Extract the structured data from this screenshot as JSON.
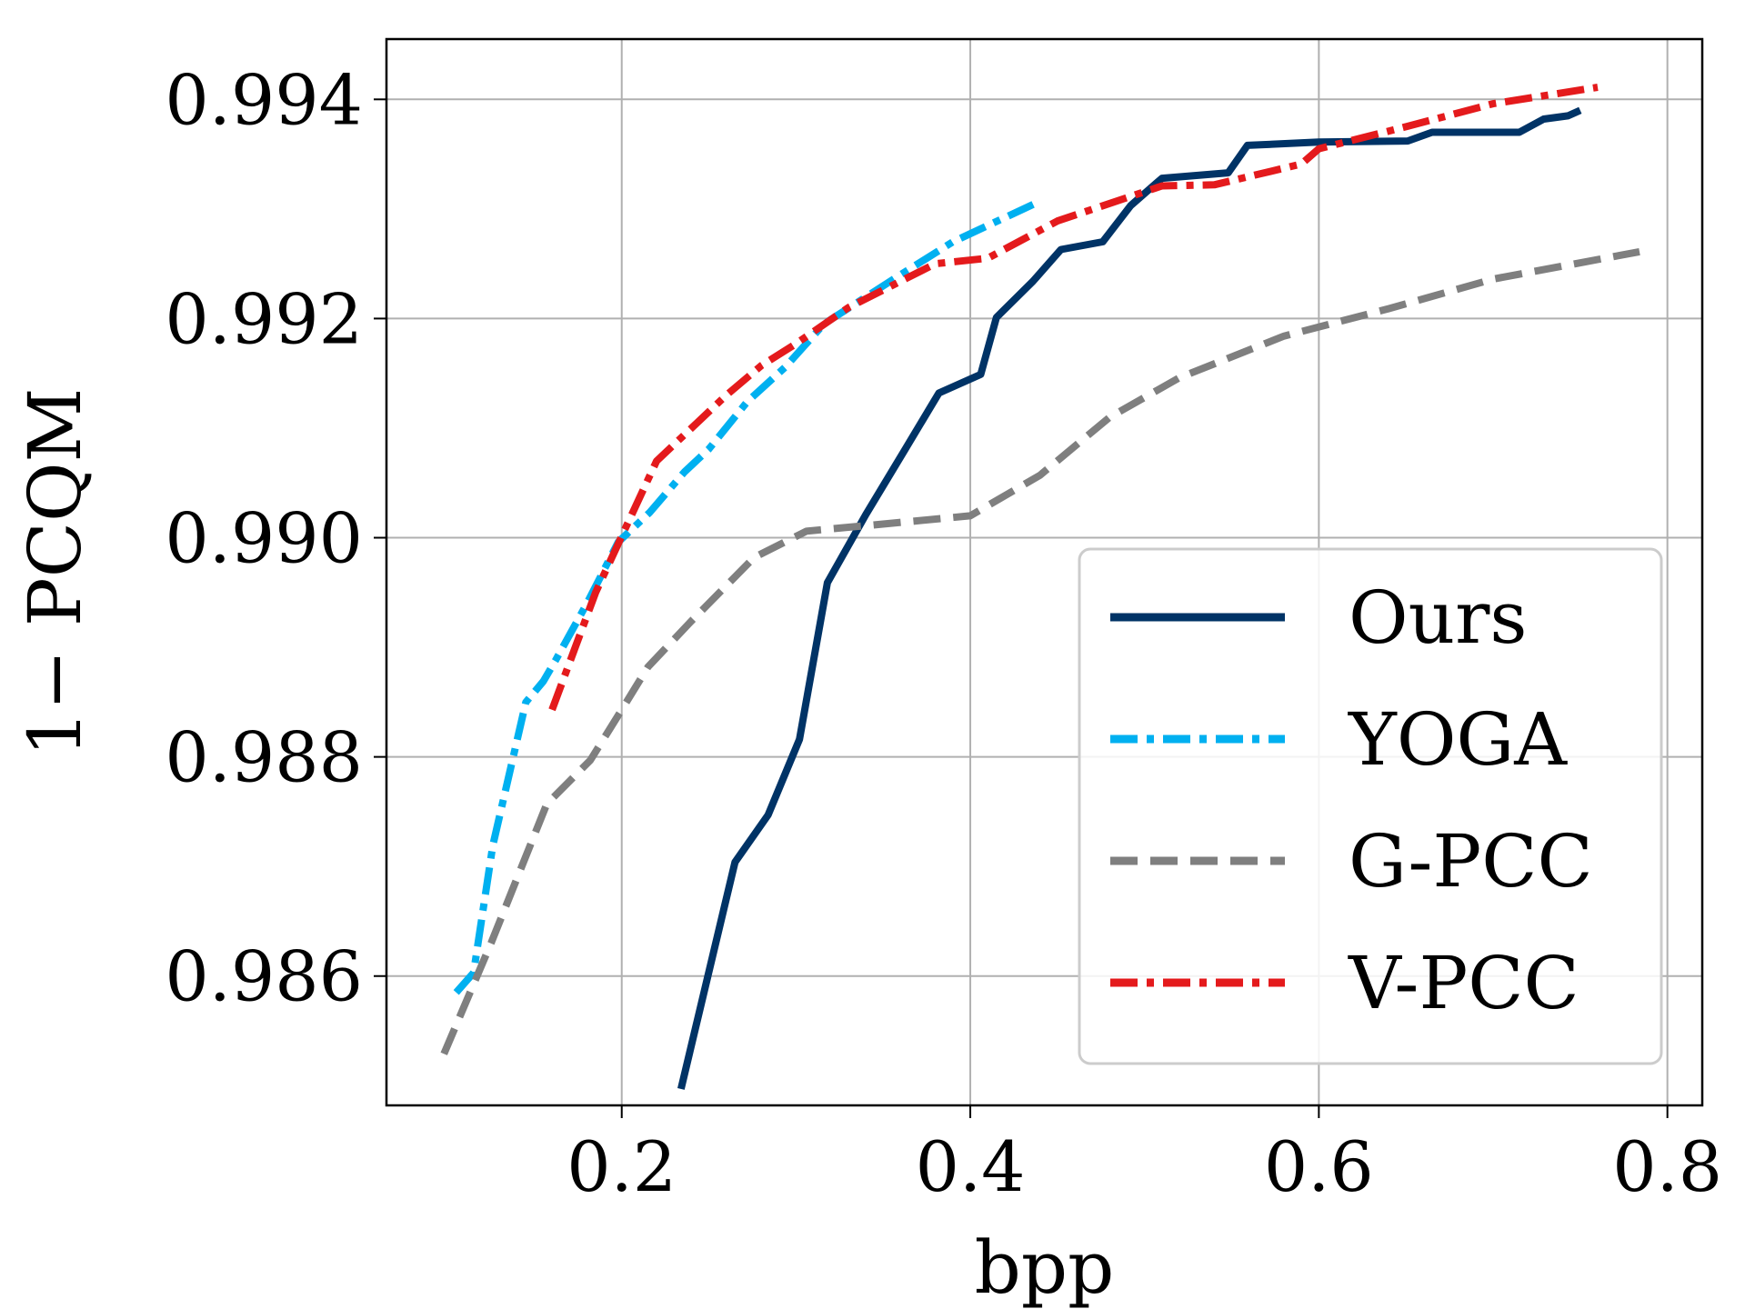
{
  "chart_data": {
    "type": "line",
    "xlabel": "bpp",
    "ylabel": "1− PCQM",
    "xlim": [
      0.065,
      0.82
    ],
    "ylim": [
      0.98482,
      0.99455
    ],
    "xticks": [
      0.2,
      0.4,
      0.6,
      0.8
    ],
    "xtick_labels": [
      "0.2",
      "0.4",
      "0.6",
      "0.8"
    ],
    "yticks": [
      0.986,
      0.988,
      0.99,
      0.992,
      0.994
    ],
    "ytick_labels": [
      "0.986",
      "0.988",
      "0.990",
      "0.992",
      "0.994"
    ],
    "grid": true,
    "legend_position": "lower-right",
    "series": [
      {
        "name": "Ours",
        "color": "#003366",
        "dash": "solid",
        "points": [
          [
            0.234,
            0.98497
          ],
          [
            0.265,
            0.98704
          ],
          [
            0.284,
            0.98747
          ],
          [
            0.302,
            0.98816
          ],
          [
            0.318,
            0.98959
          ],
          [
            0.34,
            0.99021
          ],
          [
            0.362,
            0.99079
          ],
          [
            0.382,
            0.99132
          ],
          [
            0.406,
            0.99149
          ],
          [
            0.415,
            0.99201
          ],
          [
            0.436,
            0.99234
          ],
          [
            0.452,
            0.99263
          ],
          [
            0.476,
            0.9927
          ],
          [
            0.492,
            0.99303
          ],
          [
            0.51,
            0.99328
          ],
          [
            0.548,
            0.99333
          ],
          [
            0.559,
            0.99358
          ],
          [
            0.6,
            0.99361
          ],
          [
            0.651,
            0.99362
          ],
          [
            0.665,
            0.9937
          ],
          [
            0.715,
            0.9937
          ],
          [
            0.729,
            0.99382
          ],
          [
            0.743,
            0.99385
          ],
          [
            0.75,
            0.9939
          ]
        ]
      },
      {
        "name": "YOGA",
        "color": "#00b0f0",
        "dash": "dashdot",
        "points": [
          [
            0.105,
            0.98585
          ],
          [
            0.115,
            0.98603
          ],
          [
            0.126,
            0.98719
          ],
          [
            0.145,
            0.9885
          ],
          [
            0.155,
            0.98869
          ],
          [
            0.162,
            0.98888
          ],
          [
            0.18,
            0.9894
          ],
          [
            0.198,
            0.98996
          ],
          [
            0.216,
            0.99023
          ],
          [
            0.236,
            0.9906
          ],
          [
            0.25,
            0.99081
          ],
          [
            0.272,
            0.99124
          ],
          [
            0.294,
            0.99156
          ],
          [
            0.316,
            0.99195
          ],
          [
            0.358,
            0.99238
          ],
          [
            0.39,
            0.9927
          ],
          [
            0.44,
            0.99307
          ]
        ]
      },
      {
        "name": "G-PCC",
        "color": "#7f7f7f",
        "dash": "dashed",
        "points": [
          [
            0.098,
            0.98529
          ],
          [
            0.125,
            0.9863
          ],
          [
            0.157,
            0.98757
          ],
          [
            0.182,
            0.98797
          ],
          [
            0.2,
            0.98843
          ],
          [
            0.215,
            0.98882
          ],
          [
            0.24,
            0.98924
          ],
          [
            0.276,
            0.98982
          ],
          [
            0.306,
            0.99006
          ],
          [
            0.34,
            0.99011
          ],
          [
            0.4,
            0.9902
          ],
          [
            0.44,
            0.99057
          ],
          [
            0.48,
            0.9911
          ],
          [
            0.52,
            0.99146
          ],
          [
            0.58,
            0.99184
          ],
          [
            0.64,
            0.99209
          ],
          [
            0.7,
            0.99236
          ],
          [
            0.784,
            0.99261
          ]
        ]
      },
      {
        "name": "V-PCC",
        "color": "#e41a1c",
        "dash": "dashdot",
        "points": [
          [
            0.16,
            0.98843
          ],
          [
            0.185,
            0.9895
          ],
          [
            0.22,
            0.9907
          ],
          [
            0.26,
            0.9913
          ],
          [
            0.28,
            0.99157
          ],
          [
            0.3,
            0.99177
          ],
          [
            0.33,
            0.9921
          ],
          [
            0.38,
            0.9925
          ],
          [
            0.41,
            0.99255
          ],
          [
            0.45,
            0.99289
          ],
          [
            0.51,
            0.99321
          ],
          [
            0.54,
            0.99322
          ],
          [
            0.59,
            0.99341
          ],
          [
            0.6,
            0.99355
          ],
          [
            0.65,
            0.99375
          ],
          [
            0.7,
            0.99396
          ],
          [
            0.76,
            0.99411
          ]
        ]
      }
    ]
  }
}
